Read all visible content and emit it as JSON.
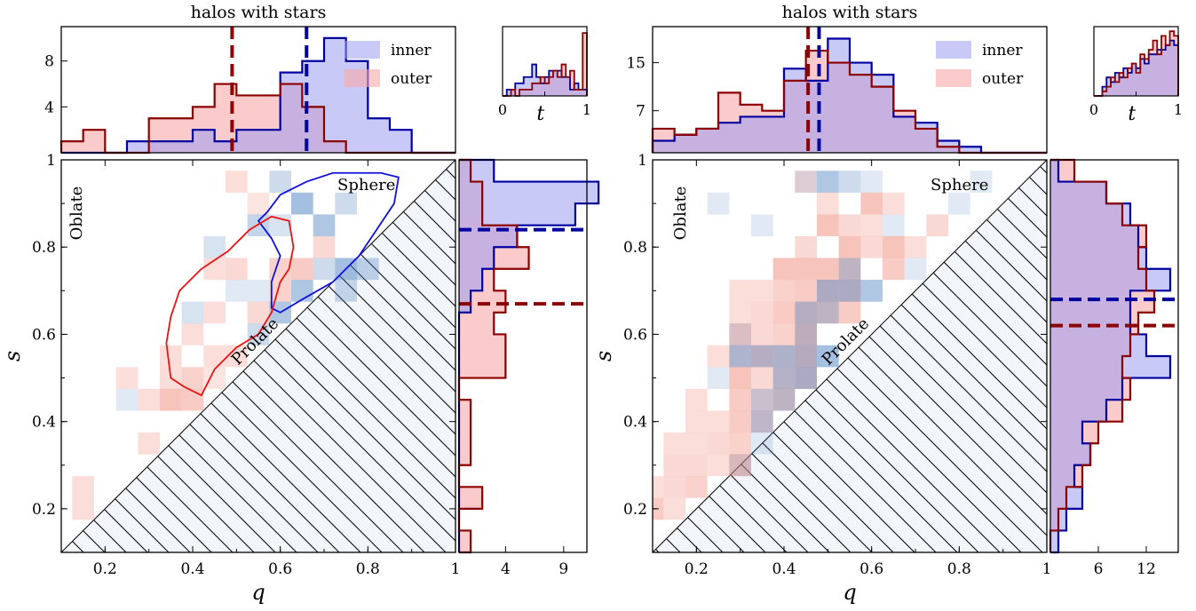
{
  "colors": {
    "inner": "#0000a0",
    "inner_fill": "#9c9cf2",
    "outer": "#8b0000",
    "outer_fill": "#f9a9a9",
    "hatch_bg": "#f2f6fb",
    "heat_inner": "#4a7fc0",
    "heat_outer": "#f08a78",
    "contour_inner": "#1010dd",
    "contour_outer": "#ee1111"
  },
  "chart_data": [
    {
      "type": "heatmap",
      "title": "halos with stars",
      "xlabel": "q",
      "ylabel": "s",
      "xlim": [
        0.1,
        1.0
      ],
      "ylim": [
        0.1,
        1.0
      ],
      "x_ticks": [
        "0.2",
        "0.4",
        "0.6",
        "0.8",
        "1"
      ],
      "y_ticks": [
        "0.2",
        "0.4",
        "0.6",
        "0.8",
        "1"
      ],
      "region_labels": {
        "oblate": "Oblate",
        "prolate": "Prolate",
        "sphere": "Sphere"
      },
      "legend": {
        "position": "top-right",
        "entries": [
          "inner",
          "outer"
        ]
      },
      "top_hist": {
        "edges": [
          0.1,
          0.15,
          0.2,
          0.25,
          0.3,
          0.35,
          0.4,
          0.45,
          0.5,
          0.55,
          0.6,
          0.65,
          0.7,
          0.75,
          0.8,
          0.85,
          0.9,
          0.95,
          1.0
        ],
        "inner": [
          0,
          0,
          0,
          1,
          1,
          1,
          2,
          1,
          2,
          2,
          7,
          8,
          10,
          8,
          3,
          2,
          0,
          0
        ],
        "outer": [
          1,
          2,
          0,
          0,
          3,
          3,
          4,
          6,
          5,
          5,
          6,
          4,
          1,
          0,
          0,
          0,
          0,
          0
        ],
        "ylim": [
          0,
          11
        ],
        "y_ticks": [
          {
            "v": 4,
            "label": "4"
          },
          {
            "v": 8,
            "label": "8"
          }
        ],
        "median_inner": 0.66,
        "median_outer": 0.49
      },
      "right_hist": {
        "edges": [
          0.1,
          0.15,
          0.2,
          0.25,
          0.3,
          0.35,
          0.4,
          0.45,
          0.5,
          0.55,
          0.6,
          0.65,
          0.7,
          0.75,
          0.8,
          0.85,
          0.9,
          0.95,
          1.0
        ],
        "inner": [
          0,
          0,
          0,
          0,
          0,
          0,
          0,
          0,
          0,
          0,
          0,
          1,
          2,
          3,
          5,
          10,
          12,
          3
        ],
        "outer": [
          1,
          0,
          2,
          0,
          1,
          1,
          1,
          0,
          4,
          4,
          3,
          4,
          3,
          6,
          5,
          2,
          2,
          1
        ],
        "xlim": [
          0,
          11
        ],
        "x_ticks": [
          {
            "v": 4,
            "label": "4"
          },
          {
            "v": 9,
            "label": "9"
          }
        ],
        "median_inner": 0.84,
        "median_outer": 0.67
      },
      "t_inset": {
        "xlabel": "t",
        "x_ticks": [
          "0",
          "1"
        ],
        "edges": [
          0,
          0.05,
          0.1,
          0.15,
          0.2,
          0.25,
          0.3,
          0.35,
          0.4,
          0.45,
          0.5,
          0.55,
          0.6,
          0.65,
          0.7,
          0.75,
          0.8,
          0.85,
          0.9,
          0.95,
          1.0
        ],
        "inner": [
          0,
          1,
          1,
          2,
          2,
          3,
          3,
          5,
          3,
          2,
          3,
          4,
          4,
          4,
          3,
          3,
          1,
          2,
          1,
          1
        ],
        "outer": [
          0,
          0,
          1,
          0,
          1,
          1,
          1,
          2,
          2,
          3,
          2,
          3,
          4,
          3,
          5,
          3,
          4,
          1,
          1,
          10
        ],
        "ymax": 11
      },
      "cells_inner": [
        [
          0.6,
          0.95,
          0.5
        ],
        [
          0.65,
          0.9,
          0.9
        ],
        [
          0.55,
          0.85,
          0.6
        ],
        [
          0.7,
          0.85,
          0.8
        ],
        [
          0.75,
          0.9,
          0.5
        ],
        [
          0.6,
          0.85,
          0.4
        ],
        [
          0.45,
          0.8,
          0.4
        ],
        [
          0.7,
          0.75,
          0.5
        ],
        [
          0.75,
          0.75,
          0.9
        ],
        [
          0.8,
          0.75,
          0.6
        ],
        [
          0.5,
          0.7,
          0.3
        ],
        [
          0.65,
          0.7,
          0.8
        ],
        [
          0.75,
          0.7,
          0.5
        ],
        [
          0.6,
          0.65,
          0.8
        ],
        [
          0.55,
          0.6,
          0.5
        ],
        [
          0.4,
          0.65,
          0.4
        ],
        [
          0.25,
          0.45,
          0.3
        ],
        [
          0.55,
          0.7,
          0.3
        ]
      ],
      "cells_outer": [
        [
          0.5,
          0.95,
          0.5
        ],
        [
          0.55,
          0.9,
          0.4
        ],
        [
          0.65,
          0.75,
          0.8
        ],
        [
          0.7,
          0.8,
          0.6
        ],
        [
          0.6,
          0.75,
          0.7
        ],
        [
          0.6,
          0.7,
          0.7
        ],
        [
          0.55,
          0.65,
          0.6
        ],
        [
          0.45,
          0.65,
          0.5
        ],
        [
          0.4,
          0.6,
          0.5
        ],
        [
          0.35,
          0.55,
          0.5
        ],
        [
          0.45,
          0.55,
          0.5
        ],
        [
          0.5,
          0.55,
          0.5
        ],
        [
          0.4,
          0.5,
          0.7
        ],
        [
          0.35,
          0.45,
          0.9
        ],
        [
          0.3,
          0.45,
          0.5
        ],
        [
          0.45,
          0.5,
          0.4
        ],
        [
          0.35,
          0.5,
          0.5
        ],
        [
          0.4,
          0.45,
          0.8
        ],
        [
          0.25,
          0.5,
          0.5
        ],
        [
          0.3,
          0.35,
          0.5
        ],
        [
          0.15,
          0.2,
          0.5
        ],
        [
          0.15,
          0.25,
          0.5
        ],
        [
          0.5,
          0.75,
          0.6
        ],
        [
          0.45,
          0.75,
          0.5
        ]
      ],
      "contour_inner": [
        [
          0.57,
          0.88
        ],
        [
          0.6,
          0.92
        ],
        [
          0.66,
          0.95
        ],
        [
          0.72,
          0.97
        ],
        [
          0.77,
          0.97
        ],
        [
          0.83,
          0.97
        ],
        [
          0.87,
          0.96
        ],
        [
          0.86,
          0.9
        ],
        [
          0.82,
          0.84
        ],
        [
          0.78,
          0.78
        ],
        [
          0.72,
          0.72
        ],
        [
          0.65,
          0.68
        ],
        [
          0.6,
          0.65
        ],
        [
          0.58,
          0.66
        ],
        [
          0.58,
          0.72
        ],
        [
          0.6,
          0.78
        ],
        [
          0.58,
          0.82
        ],
        [
          0.55,
          0.86
        ]
      ],
      "contour_outer": [
        [
          0.35,
          0.5
        ],
        [
          0.34,
          0.58
        ],
        [
          0.35,
          0.64
        ],
        [
          0.37,
          0.7
        ],
        [
          0.42,
          0.75
        ],
        [
          0.48,
          0.79
        ],
        [
          0.53,
          0.84
        ],
        [
          0.58,
          0.87
        ],
        [
          0.62,
          0.86
        ],
        [
          0.63,
          0.8
        ],
        [
          0.62,
          0.75
        ],
        [
          0.6,
          0.72
        ],
        [
          0.58,
          0.65
        ],
        [
          0.55,
          0.6
        ],
        [
          0.5,
          0.57
        ],
        [
          0.45,
          0.52
        ],
        [
          0.42,
          0.46
        ],
        [
          0.38,
          0.48
        ]
      ]
    },
    {
      "type": "heatmap",
      "title": "halos with stars",
      "xlabel": "q",
      "ylabel": "s",
      "xlim": [
        0.1,
        1.0
      ],
      "ylim": [
        0.1,
        1.0
      ],
      "x_ticks": [
        "0.2",
        "0.4",
        "0.6",
        "0.8",
        "1"
      ],
      "y_ticks": [
        "0.2",
        "0.4",
        "0.6",
        "0.8",
        "1"
      ],
      "region_labels": {
        "oblate": "Oblate",
        "prolate": "Prolate",
        "sphere": "Sphere"
      },
      "legend": {
        "position": "top-right",
        "entries": [
          "inner",
          "outer"
        ]
      },
      "top_hist": {
        "edges": [
          0.1,
          0.15,
          0.2,
          0.25,
          0.3,
          0.35,
          0.4,
          0.45,
          0.5,
          0.55,
          0.6,
          0.65,
          0.7,
          0.75,
          0.8,
          0.85,
          0.9,
          0.95,
          1.0
        ],
        "inner": [
          2,
          3,
          4,
          5,
          6,
          6,
          14,
          12,
          19,
          15,
          13,
          6,
          5,
          2,
          1,
          0,
          0,
          0
        ],
        "outer": [
          4,
          3,
          4,
          10,
          8,
          7,
          12,
          17,
          15,
          13,
          11,
          7,
          4,
          1,
          0,
          0,
          0,
          0
        ],
        "ylim": [
          0,
          21
        ],
        "y_ticks": [
          {
            "v": 7,
            "label": "7"
          },
          {
            "v": 15,
            "label": "15"
          }
        ],
        "median_inner": 0.48,
        "median_outer": 0.455
      },
      "right_hist": {
        "edges": [
          0.1,
          0.15,
          0.2,
          0.25,
          0.3,
          0.35,
          0.4,
          0.45,
          0.5,
          0.55,
          0.6,
          0.65,
          0.7,
          0.75,
          0.8,
          0.85,
          0.9,
          0.95,
          1.0
        ],
        "inner": [
          1,
          2,
          4,
          3,
          5,
          4,
          7,
          9,
          15,
          12,
          10,
          10,
          15,
          12,
          11,
          10,
          7,
          1
        ],
        "outer": [
          0,
          1,
          2,
          4,
          5,
          6,
          9,
          10,
          9,
          10,
          11,
          13,
          12,
          11,
          12,
          9,
          7,
          3
        ],
        "xlim": [
          0,
          16
        ],
        "x_ticks": [
          {
            "v": 6,
            "label": "6"
          },
          {
            "v": 12,
            "label": "12"
          }
        ],
        "median_inner": 0.68,
        "median_outer": 0.62
      },
      "t_inset": {
        "xlabel": "t",
        "x_ticks": [
          "0",
          "1"
        ],
        "edges": [
          0,
          0.05,
          0.1,
          0.15,
          0.2,
          0.25,
          0.3,
          0.35,
          0.4,
          0.45,
          0.5,
          0.55,
          0.6,
          0.65,
          0.7,
          0.75,
          0.8,
          0.85,
          0.9,
          0.95,
          1.0
        ],
        "inner": [
          0,
          0,
          2,
          4,
          3,
          5,
          4,
          6,
          5,
          7,
          6,
          8,
          7,
          9,
          9,
          10,
          10,
          11,
          12,
          11
        ],
        "outer": [
          0,
          0,
          1,
          2,
          4,
          3,
          5,
          4,
          6,
          7,
          5,
          9,
          8,
          10,
          12,
          9,
          13,
          11,
          14,
          13
        ],
        "ymax": 15
      },
      "cells_inner": [
        [
          0.45,
          0.95,
          0.3
        ],
        [
          0.5,
          0.95,
          0.8
        ],
        [
          0.55,
          0.95,
          0.5
        ],
        [
          0.6,
          0.95,
          0.3
        ],
        [
          0.25,
          0.9,
          0.3
        ],
        [
          0.35,
          0.85,
          0.3
        ],
        [
          0.65,
          0.85,
          0.3
        ],
        [
          0.8,
          0.9,
          0.3
        ],
        [
          0.85,
          0.95,
          0.3
        ],
        [
          0.7,
          0.75,
          0.3
        ],
        [
          0.6,
          0.7,
          0.8
        ],
        [
          0.5,
          0.65,
          0.6
        ],
        [
          0.4,
          0.55,
          0.8
        ],
        [
          0.35,
          0.55,
          0.7
        ],
        [
          0.45,
          0.6,
          0.6
        ],
        [
          0.3,
          0.55,
          0.8
        ],
        [
          0.3,
          0.6,
          0.3
        ],
        [
          0.25,
          0.5,
          0.3
        ],
        [
          0.5,
          0.55,
          0.9
        ],
        [
          0.45,
          0.55,
          0.7
        ],
        [
          0.4,
          0.45,
          0.6
        ],
        [
          0.35,
          0.4,
          0.6
        ],
        [
          0.35,
          0.35,
          0.3
        ],
        [
          0.3,
          0.3,
          0.3
        ],
        [
          0.55,
          0.75,
          0.6
        ],
        [
          0.5,
          0.7,
          0.8
        ],
        [
          0.55,
          0.7,
          0.8
        ],
        [
          0.4,
          0.5,
          0.7
        ],
        [
          0.45,
          0.65,
          0.7
        ],
        [
          0.45,
          0.5,
          0.8
        ],
        [
          0.35,
          0.45,
          0.5
        ]
      ],
      "cells_outer": [
        [
          0.45,
          0.95,
          0.5
        ],
        [
          0.5,
          0.9,
          0.5
        ],
        [
          0.5,
          0.85,
          0.9
        ],
        [
          0.6,
          0.9,
          0.9
        ],
        [
          0.65,
          0.9,
          0.5
        ],
        [
          0.55,
          0.85,
          0.6
        ],
        [
          0.6,
          0.85,
          0.5
        ],
        [
          0.65,
          0.8,
          0.9
        ],
        [
          0.55,
          0.8,
          0.9
        ],
        [
          0.45,
          0.8,
          0.6
        ],
        [
          0.4,
          0.75,
          0.9
        ],
        [
          0.45,
          0.75,
          0.9
        ],
        [
          0.5,
          0.75,
          0.9
        ],
        [
          0.55,
          0.75,
          0.8
        ],
        [
          0.6,
          0.8,
          0.6
        ],
        [
          0.65,
          0.75,
          0.8
        ],
        [
          0.4,
          0.7,
          0.7
        ],
        [
          0.45,
          0.7,
          0.8
        ],
        [
          0.5,
          0.7,
          0.8
        ],
        [
          0.55,
          0.7,
          0.8
        ],
        [
          0.3,
          0.7,
          0.5
        ],
        [
          0.35,
          0.7,
          0.5
        ],
        [
          0.3,
          0.65,
          0.5
        ],
        [
          0.35,
          0.65,
          0.6
        ],
        [
          0.4,
          0.65,
          0.8
        ],
        [
          0.45,
          0.65,
          0.8
        ],
        [
          0.5,
          0.65,
          0.8
        ],
        [
          0.55,
          0.65,
          0.8
        ],
        [
          0.3,
          0.6,
          0.8
        ],
        [
          0.35,
          0.6,
          0.6
        ],
        [
          0.4,
          0.6,
          0.7
        ],
        [
          0.45,
          0.6,
          0.9
        ],
        [
          0.25,
          0.55,
          0.5
        ],
        [
          0.3,
          0.55,
          0.5
        ],
        [
          0.35,
          0.55,
          0.8
        ],
        [
          0.4,
          0.55,
          0.6
        ],
        [
          0.45,
          0.55,
          0.9
        ],
        [
          0.3,
          0.5,
          0.9
        ],
        [
          0.35,
          0.5,
          0.6
        ],
        [
          0.4,
          0.5,
          0.7
        ],
        [
          0.45,
          0.5,
          0.8
        ],
        [
          0.3,
          0.45,
          0.8
        ],
        [
          0.35,
          0.45,
          0.6
        ],
        [
          0.4,
          0.45,
          0.8
        ],
        [
          0.2,
          0.45,
          0.5
        ],
        [
          0.2,
          0.4,
          0.5
        ],
        [
          0.25,
          0.4,
          0.5
        ],
        [
          0.3,
          0.4,
          0.8
        ],
        [
          0.35,
          0.4,
          0.7
        ],
        [
          0.15,
          0.35,
          0.5
        ],
        [
          0.2,
          0.35,
          0.5
        ],
        [
          0.25,
          0.35,
          0.6
        ],
        [
          0.3,
          0.35,
          0.7
        ],
        [
          0.15,
          0.3,
          0.6
        ],
        [
          0.2,
          0.3,
          0.6
        ],
        [
          0.25,
          0.3,
          0.5
        ],
        [
          0.3,
          0.3,
          0.9
        ],
        [
          0.1,
          0.25,
          0.5
        ],
        [
          0.15,
          0.25,
          0.6
        ],
        [
          0.2,
          0.25,
          0.7
        ],
        [
          0.1,
          0.2,
          0.8
        ],
        [
          0.15,
          0.2,
          0.5
        ],
        [
          0.75,
          0.85,
          0.6
        ],
        [
          0.7,
          0.8,
          0.5
        ]
      ],
      "contour_inner": [],
      "contour_outer": []
    }
  ]
}
